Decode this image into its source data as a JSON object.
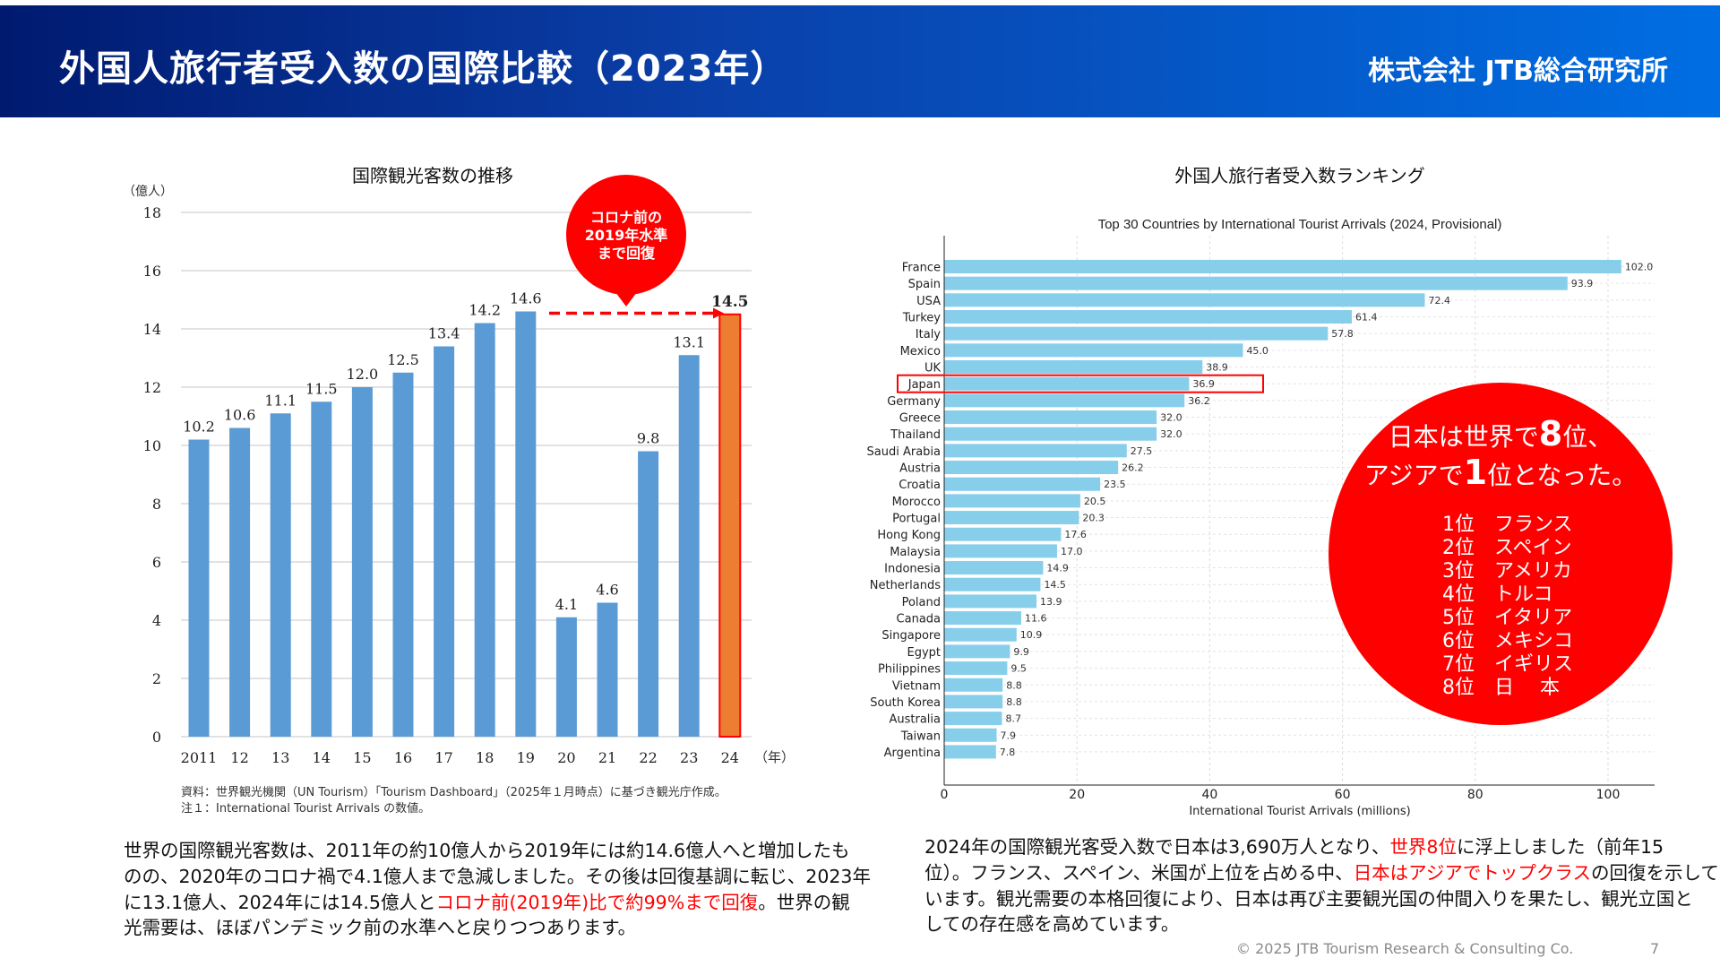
{
  "header": {
    "title": "外国人旅行者受入数の国際比較（2023年）",
    "logo": "株式会社 JTB総合研究所"
  },
  "colors": {
    "bar_blue": "#5b9bd5",
    "bar_highlight": "#ed7d31",
    "bar_ranking": "#87ceeb",
    "accent_red": "#ff0000"
  },
  "chart_data": [
    {
      "type": "bar",
      "title": "国際観光客数の推移",
      "ylabel": "（億人）",
      "xlabel": "（年）",
      "categories": [
        "2011",
        "12",
        "13",
        "14",
        "15",
        "16",
        "17",
        "18",
        "19",
        "20",
        "21",
        "22",
        "23",
        "24"
      ],
      "values": [
        10.2,
        10.6,
        11.1,
        11.5,
        12.0,
        12.5,
        13.4,
        14.2,
        14.6,
        4.1,
        4.6,
        9.8,
        13.1,
        14.5
      ],
      "value_labels": [
        "10.2",
        "10.6",
        "11.1",
        "11.5",
        "12.0",
        "12.5",
        "13.4",
        "14.2",
        "14.6",
        "4.1",
        "4.6",
        "9.8",
        "13.1",
        "14.5"
      ],
      "ylim": [
        0,
        18
      ],
      "yticks": [
        "0",
        "2",
        "4",
        "6",
        "8",
        "10",
        "12",
        "14",
        "16",
        "18"
      ],
      "highlight_category": "24",
      "grid": true,
      "callout": [
        "コロナ前の",
        "2019年水準",
        "まで回復"
      ],
      "notes": [
        "資料：世界観光機関（UN Tourism）「Tourism Dashboard」（2025年１月時点）に基づき観光庁作成。",
        "注１：International Tourist Arrivals の数値。"
      ]
    },
    {
      "type": "bar",
      "orientation": "horizontal",
      "heading": "外国人旅行者受入数ランキング",
      "title": "Top 30 Countries by International Tourist Arrivals (2024, Provisional)",
      "xlabel": "International Tourist Arrivals (millions)",
      "categories": [
        "France",
        "Spain",
        "USA",
        "Turkey",
        "Italy",
        "Mexico",
        "UK",
        "Japan",
        "Germany",
        "Greece",
        "Thailand",
        "Saudi Arabia",
        "Austria",
        "Croatia",
        "Morocco",
        "Portugal",
        "Hong Kong",
        "Malaysia",
        "Indonesia",
        "Netherlands",
        "Poland",
        "Canada",
        "Singapore",
        "Egypt",
        "Philippines",
        "Vietnam",
        "South Korea",
        "Australia",
        "Taiwan",
        "Argentina"
      ],
      "values": [
        102.0,
        93.9,
        72.4,
        61.4,
        57.8,
        45.0,
        38.9,
        36.9,
        36.2,
        32.0,
        32.0,
        27.5,
        26.2,
        23.5,
        20.5,
        20.3,
        17.6,
        17.0,
        14.9,
        14.5,
        13.9,
        11.6,
        10.9,
        9.9,
        9.5,
        8.8,
        8.8,
        8.7,
        7.9,
        7.8
      ],
      "xlim": [
        0,
        107
      ],
      "xticks": [
        "0",
        "20",
        "40",
        "60",
        "80",
        "100"
      ],
      "highlight_category": "Japan",
      "grid": true
    }
  ],
  "ranking_callout": {
    "line1_pre": "日本は世界で",
    "line1_num": "8",
    "line1_post": "位、",
    "line2_pre": "アジアで",
    "line2_num": "1",
    "line2_post": "位となった。",
    "list": [
      "1位　フランス",
      "2位　スペイン",
      "3位　アメリカ",
      "4位　トルコ",
      "5位　イタリア",
      "6位　メキシコ",
      "7位　イギリス",
      "8位　日　 本"
    ]
  },
  "left_text": {
    "p1": "世界の国際観光客数は、2011年の約10億人から2019年には約14.6億人へと増加したも",
    "p2": "のの、2020年のコロナ禍で4.1億人まで急減しました。その後は回復基調に転じ、2023年",
    "p3a": "に13.1億人、2024年には14.5億人と",
    "p3hl": "コロナ前(2019年)比で約99%まで回復",
    "p3b": "。世界の観",
    "p4": "光需要は、ほぼパンデミック前の水準へと戻りつつあります。"
  },
  "right_text": {
    "p1a": "2024年の国際観光客受入数で日本は3,690万人となり、",
    "p1hl": "世界8位",
    "p1b": "に浮上しました（前年15",
    "p2a": "位）。フランス、スペイン、米国が上位を占める中、",
    "p2hl": "日本はアジアでトップクラス",
    "p2b": "の回復を示して",
    "p3": "います。観光需要の本格回復により、日本は再び主要観光国の仲間入りを果たし、観光立国と",
    "p4": "しての存在感を高めています。"
  },
  "footer": {
    "copyright": "© 2025 JTB Tourism Research & Consulting Co.",
    "page": "7"
  }
}
